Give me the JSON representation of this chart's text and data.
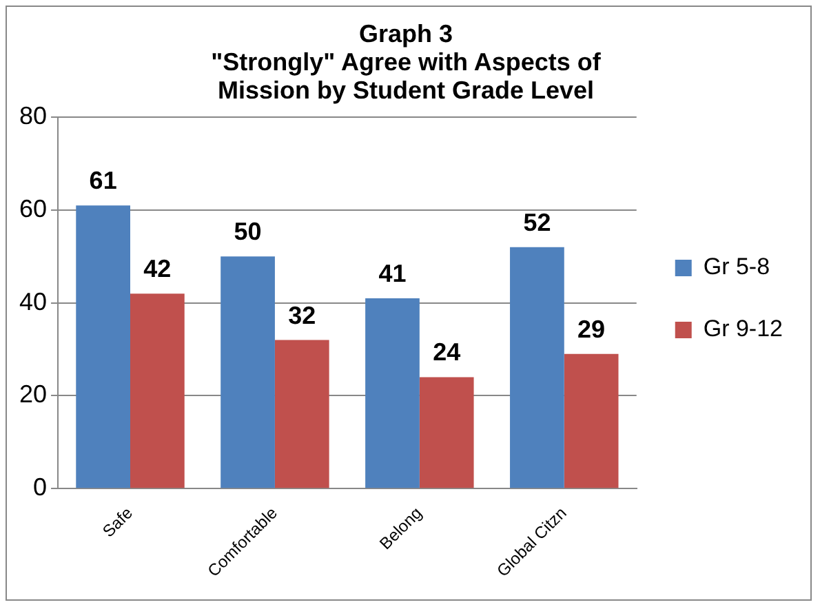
{
  "chart_data": {
    "type": "bar",
    "title": "Graph 3\n\"Strongly\" Agree with Aspects of\nMission by Student Grade Level",
    "categories": [
      "Safe",
      "Comfortable",
      "Belong",
      "Global Citzn"
    ],
    "series": [
      {
        "name": "Gr 5-8",
        "color": "#4f81bd",
        "values": [
          61,
          50,
          41,
          52
        ]
      },
      {
        "name": "Gr 9-12",
        "color": "#c0504d",
        "values": [
          42,
          32,
          24,
          29
        ]
      }
    ],
    "ylim": [
      0,
      80
    ],
    "yticks": [
      0,
      20,
      40,
      60,
      80
    ],
    "grid": "y",
    "legend": "right",
    "data_labels": true
  }
}
